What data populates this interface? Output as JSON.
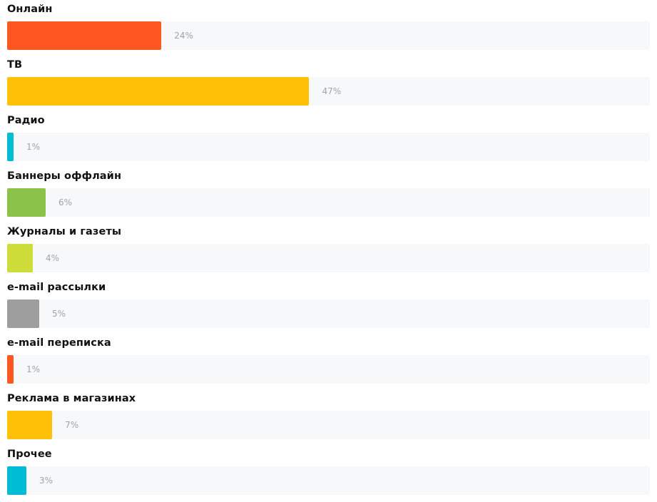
{
  "chart_data": {
    "type": "bar",
    "orientation": "horizontal",
    "xlim": [
      0,
      100
    ],
    "categories": [
      "Онлайн",
      "ТВ",
      "Радио",
      "Баннеры оффлайн",
      "Журналы и газеты",
      "e-mail рассылки",
      "e-mail переписка",
      "Реклама в магазинах",
      "Прочее"
    ],
    "values": [
      24,
      47,
      1,
      6,
      4,
      5,
      1,
      7,
      3
    ],
    "value_labels": [
      "24%",
      "47%",
      "1%",
      "6%",
      "4%",
      "5%",
      "1%",
      "7%",
      "3%"
    ],
    "colors": [
      "#ff5722",
      "#ffc107",
      "#00bcd4",
      "#8bc34a",
      "#cddc39",
      "#9e9e9e",
      "#ff5722",
      "#ffc107",
      "#00bcd4"
    ],
    "track_color": "#f7f8fa",
    "grid": false,
    "legend": "none"
  }
}
